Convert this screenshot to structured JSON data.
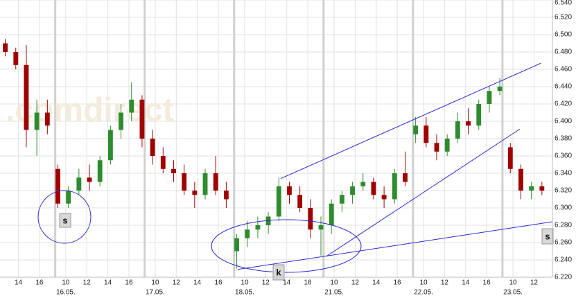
{
  "chart_data": {
    "type": "candlestick",
    "watermark": ".comdirect",
    "xlim": [
      0,
      52.5
    ],
    "ylim": [
      6.22,
      6.54
    ],
    "yticks": [
      {
        "value": 6.22,
        "label": "6.220"
      },
      {
        "value": 6.24,
        "label": "6.240"
      },
      {
        "value": 6.26,
        "label": "6.260"
      },
      {
        "value": 6.28,
        "label": "6.280"
      },
      {
        "value": 6.3,
        "label": "6.300"
      },
      {
        "value": 6.32,
        "label": "6.320"
      },
      {
        "value": 6.34,
        "label": "6.340"
      },
      {
        "value": 6.36,
        "label": "6.360"
      },
      {
        "value": 6.38,
        "label": "6.380"
      },
      {
        "value": 6.4,
        "label": "6.400"
      },
      {
        "value": 6.42,
        "label": "6.420"
      },
      {
        "value": 6.44,
        "label": "6.440"
      },
      {
        "value": 6.46,
        "label": "6.460"
      },
      {
        "value": 6.48,
        "label": "6.480"
      },
      {
        "value": 6.5,
        "label": "6.500"
      },
      {
        "value": 6.52,
        "label": "6.520"
      },
      {
        "value": 6.54,
        "label": "6.540"
      }
    ],
    "xticks": [
      {
        "value": 1.75,
        "label": "14"
      },
      {
        "value": 3.75,
        "label": "16"
      },
      {
        "value": 6.25,
        "label": "10"
      },
      {
        "value": 8.25,
        "label": "12"
      },
      {
        "value": 10.25,
        "label": "14"
      },
      {
        "value": 12.25,
        "label": "16"
      },
      {
        "value": 14.75,
        "label": "10"
      },
      {
        "value": 16.75,
        "label": "12"
      },
      {
        "value": 18.75,
        "label": "14"
      },
      {
        "value": 20.75,
        "label": "16"
      },
      {
        "value": 23.25,
        "label": "10"
      },
      {
        "value": 25.25,
        "label": "12"
      },
      {
        "value": 27.25,
        "label": "14"
      },
      {
        "value": 29.25,
        "label": "16"
      },
      {
        "value": 31.75,
        "label": "10"
      },
      {
        "value": 33.75,
        "label": "12"
      },
      {
        "value": 35.75,
        "label": "14"
      },
      {
        "value": 37.75,
        "label": "16"
      },
      {
        "value": 40.25,
        "label": "10"
      },
      {
        "value": 42.25,
        "label": "12"
      },
      {
        "value": 44.25,
        "label": "14"
      },
      {
        "value": 46.25,
        "label": "16"
      },
      {
        "value": 48.75,
        "label": "10"
      },
      {
        "value": 50.75,
        "label": "12"
      }
    ],
    "xdates": [
      {
        "value": 6.25,
        "label": "16.05."
      },
      {
        "value": 14.75,
        "label": "17.05."
      },
      {
        "value": 23.25,
        "label": "18.05."
      },
      {
        "value": 31.75,
        "label": "21.05."
      },
      {
        "value": 40.25,
        "label": "22.05."
      },
      {
        "value": 48.75,
        "label": "23.05."
      }
    ],
    "day_breaks": [
      5.25,
      13.75,
      22.25,
      30.75,
      39.25,
      47.75
    ],
    "grid": true,
    "up_color": "#2e8b2e",
    "down_color": "#a00000",
    "x": [
      0.5,
      1.5,
      2.5,
      3.5,
      4.5,
      5.5,
      6.5,
      7.5,
      8.5,
      9.5,
      10.5,
      11.5,
      12.5,
      13.5,
      14.5,
      15.5,
      16.5,
      17.5,
      18.5,
      19.5,
      20.5,
      21.5,
      22.5,
      23.5,
      24.5,
      25.5,
      26.5,
      27.5,
      28.5,
      29.5,
      30.5,
      31.5,
      32.5,
      33.5,
      34.5,
      35.5,
      36.5,
      37.5,
      38.5,
      39.5,
      40.5,
      41.5,
      42.5,
      43.5,
      44.5,
      45.5,
      46.5,
      47.5,
      48.5,
      49.5,
      50.5,
      51.5
    ],
    "open": [
      6.49,
      6.48,
      6.465,
      6.39,
      6.41,
      6.345,
      6.305,
      6.32,
      6.335,
      6.33,
      6.355,
      6.39,
      6.41,
      6.425,
      6.38,
      6.36,
      6.345,
      6.34,
      6.32,
      6.315,
      6.34,
      6.32,
      6.25,
      6.265,
      6.275,
      6.28,
      6.29,
      6.325,
      6.315,
      6.3,
      6.275,
      6.28,
      6.305,
      6.315,
      6.325,
      6.33,
      6.315,
      6.31,
      6.34,
      6.385,
      6.395,
      6.375,
      6.365,
      6.38,
      6.4,
      6.395,
      6.42,
      6.435,
      6.37,
      6.345,
      6.32,
      6.325
    ],
    "high": [
      6.495,
      6.485,
      6.488,
      6.425,
      6.425,
      6.35,
      6.325,
      6.345,
      6.35,
      6.36,
      6.395,
      6.42,
      6.445,
      6.43,
      6.39,
      6.37,
      6.355,
      6.35,
      6.33,
      6.345,
      6.36,
      6.33,
      6.27,
      6.285,
      6.29,
      6.295,
      6.335,
      6.33,
      6.325,
      6.31,
      6.29,
      6.31,
      6.32,
      6.33,
      6.34,
      6.335,
      6.325,
      6.345,
      6.365,
      6.405,
      6.405,
      6.385,
      6.385,
      6.41,
      6.415,
      6.425,
      6.44,
      6.45,
      6.375,
      6.35,
      6.33,
      6.33
    ],
    "low": [
      6.475,
      6.46,
      6.37,
      6.36,
      6.385,
      6.3,
      6.3,
      6.315,
      6.32,
      6.325,
      6.35,
      6.38,
      6.4,
      6.37,
      6.35,
      6.34,
      6.33,
      6.315,
      6.3,
      6.31,
      6.315,
      6.3,
      6.23,
      6.255,
      6.265,
      6.27,
      6.285,
      6.305,
      6.295,
      6.265,
      6.245,
      6.27,
      6.295,
      6.305,
      6.32,
      6.31,
      6.3,
      6.305,
      6.325,
      6.375,
      6.37,
      6.355,
      6.36,
      6.375,
      6.385,
      6.39,
      6.41,
      6.43,
      6.34,
      6.31,
      6.31,
      6.315
    ],
    "close": [
      6.48,
      6.465,
      6.39,
      6.41,
      6.395,
      6.305,
      6.32,
      6.335,
      6.33,
      6.355,
      6.39,
      6.41,
      6.425,
      6.38,
      6.36,
      6.345,
      6.34,
      6.32,
      6.315,
      6.34,
      6.32,
      6.31,
      6.265,
      6.275,
      6.28,
      6.29,
      6.325,
      6.315,
      6.3,
      6.275,
      6.28,
      6.305,
      6.315,
      6.325,
      6.33,
      6.315,
      6.31,
      6.34,
      6.33,
      6.395,
      6.375,
      6.365,
      6.38,
      6.4,
      6.395,
      6.42,
      6.435,
      6.44,
      6.345,
      6.32,
      6.325,
      6.32
    ],
    "trend_lines": [
      {
        "x": [
          26.7,
          51.4
        ],
        "y": [
          6.334,
          6.467
        ]
      },
      {
        "x": [
          31.0,
          49.4
        ],
        "y": [
          6.244,
          6.391
        ]
      },
      {
        "x": [
          22.6,
          52.5
        ],
        "y": [
          6.229,
          6.284
        ]
      }
    ],
    "annotations": [
      "s",
      "k",
      "s"
    ]
  }
}
